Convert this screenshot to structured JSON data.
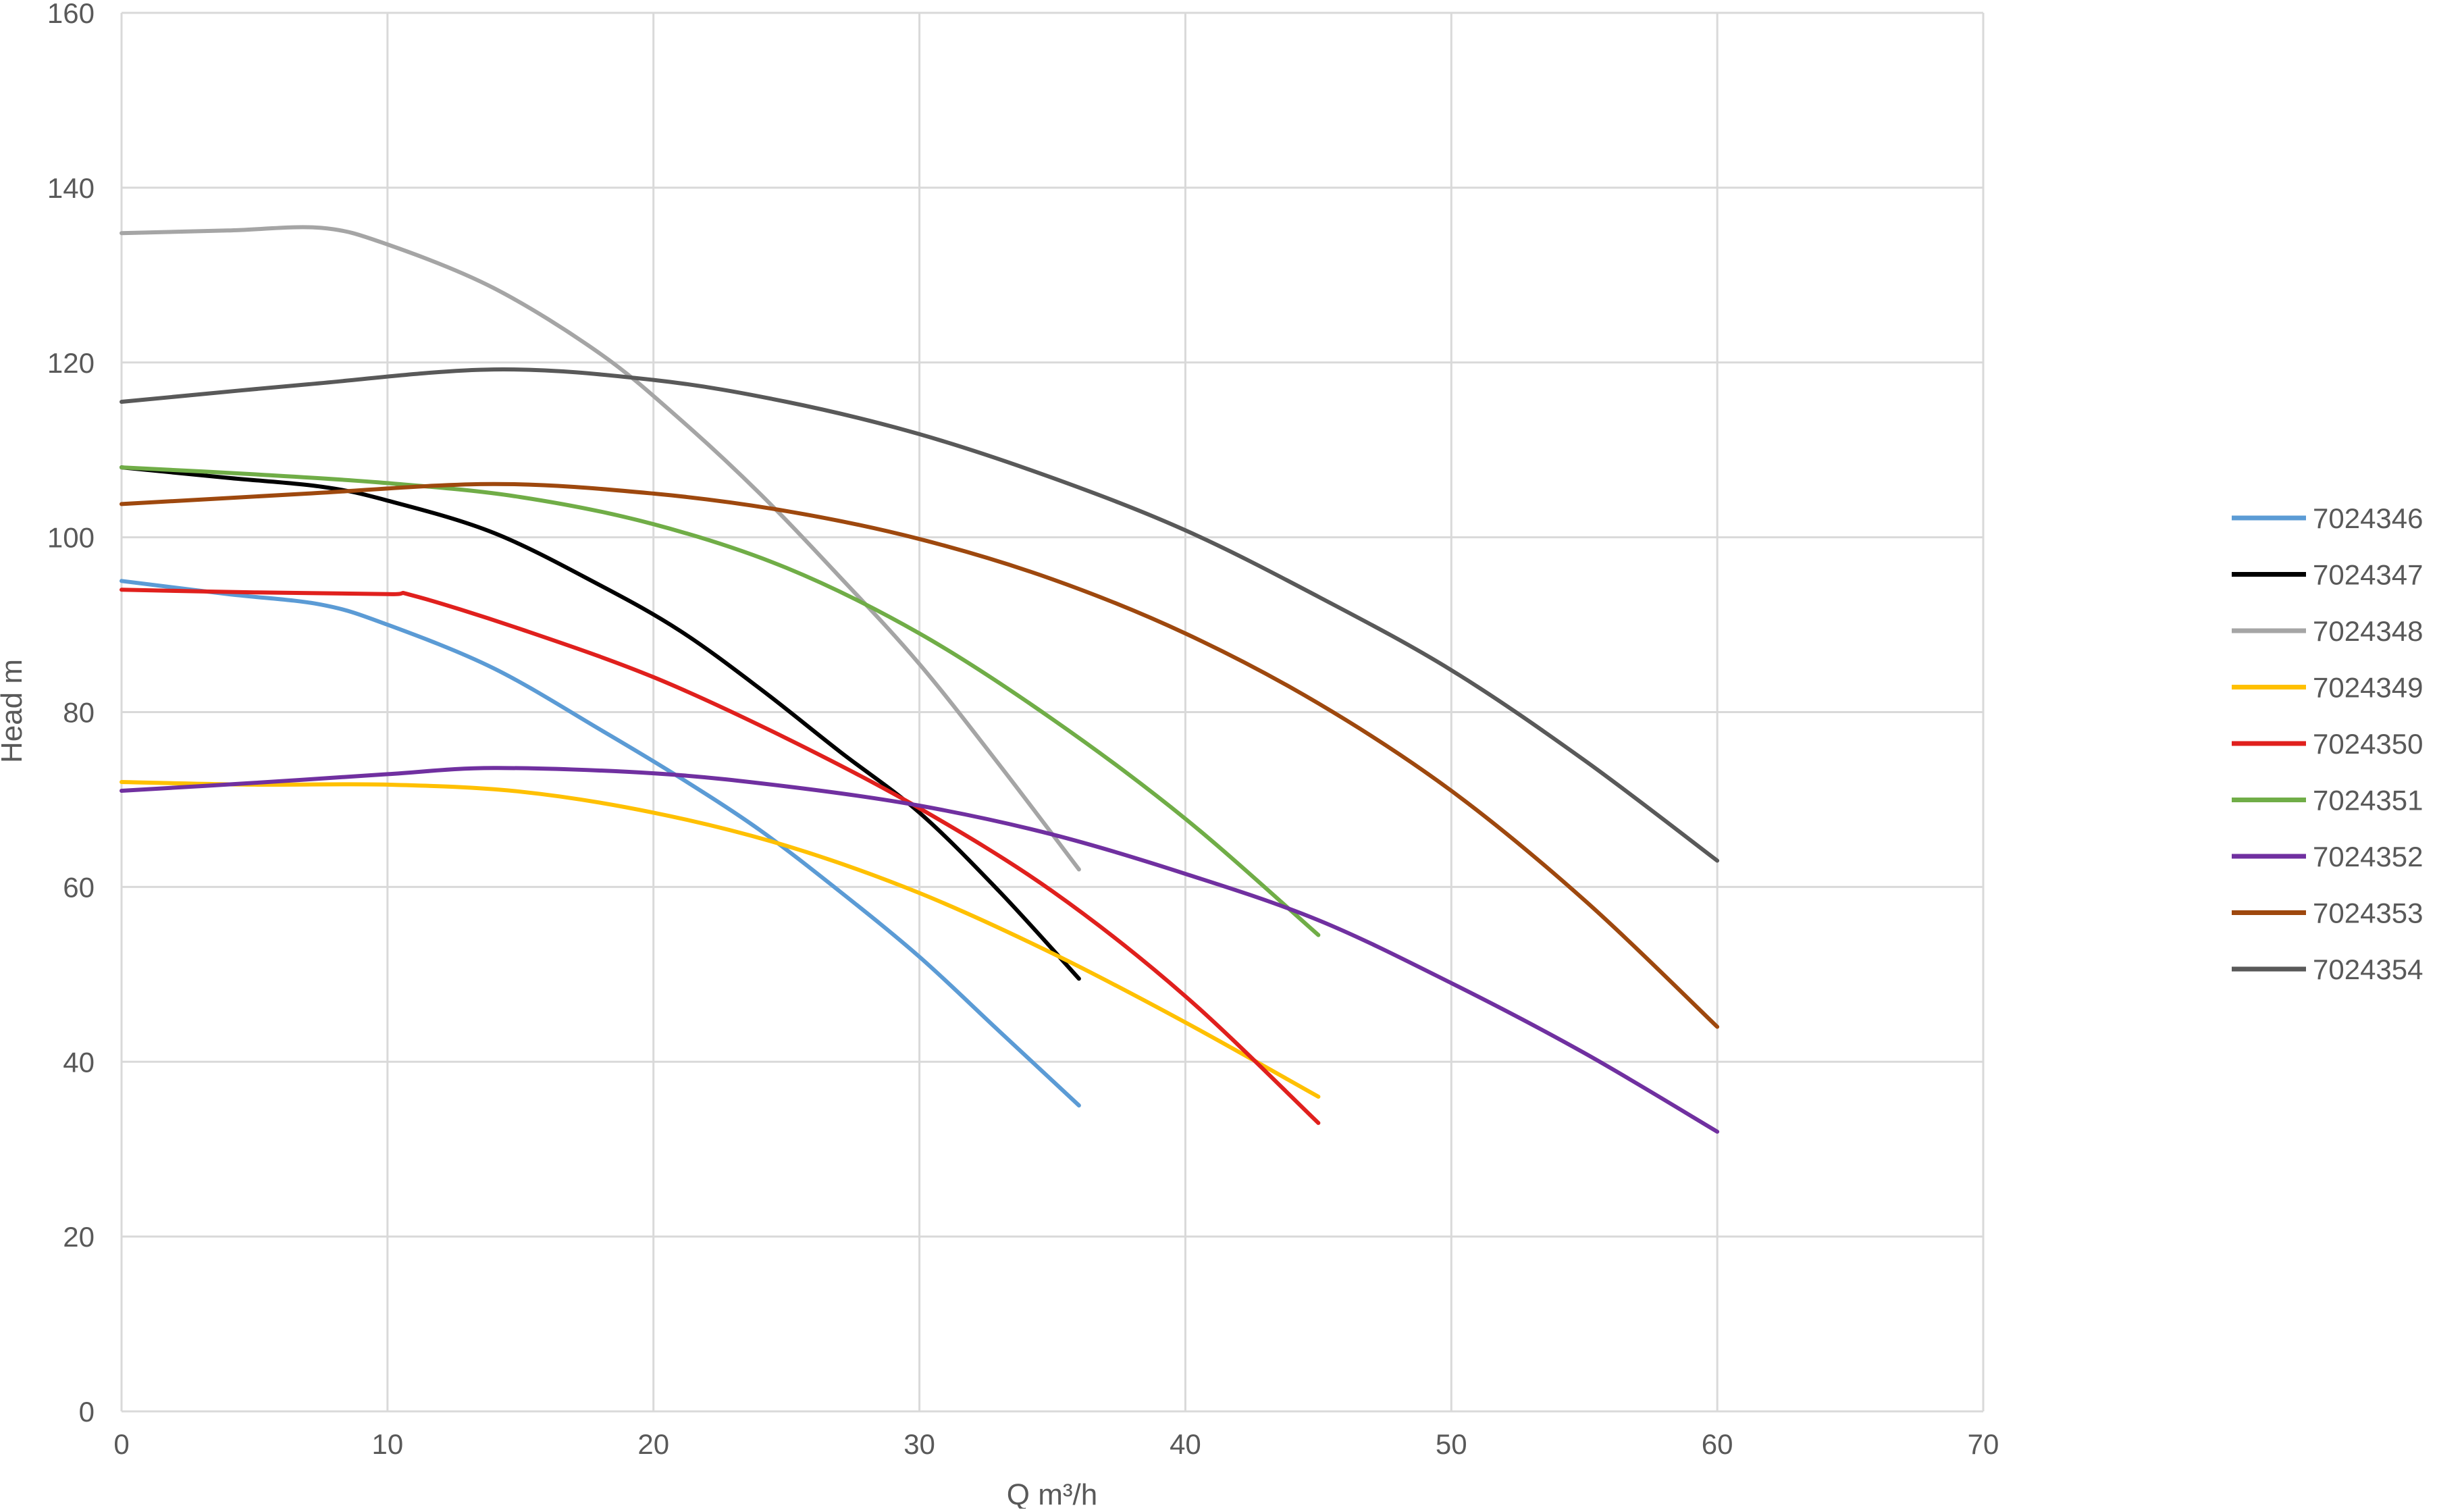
{
  "chart_data": {
    "type": "line",
    "title": "",
    "xlabel": "Q m³/h",
    "ylabel": "Head m",
    "xlim": [
      0,
      70
    ],
    "ylim": [
      0,
      160
    ],
    "x_ticks": [
      0,
      10,
      20,
      30,
      40,
      50,
      60,
      70
    ],
    "y_ticks": [
      0,
      20,
      40,
      60,
      80,
      100,
      120,
      140,
      160
    ],
    "grid": true,
    "legend_position": "right",
    "series": [
      {
        "name": "7024346",
        "color": "#5b9bd5",
        "points": [
          [
            0,
            95
          ],
          [
            4,
            93.5
          ],
          [
            7.5,
            92.3
          ],
          [
            10,
            90
          ],
          [
            14,
            85
          ],
          [
            18,
            78
          ],
          [
            21,
            72.5
          ],
          [
            24,
            66.5
          ],
          [
            27,
            59.5
          ],
          [
            30,
            52
          ],
          [
            33,
            43.5
          ],
          [
            36,
            35
          ]
        ]
      },
      {
        "name": "7024347",
        "color": "#000000",
        "points": [
          [
            0,
            108
          ],
          [
            4,
            106.8
          ],
          [
            7.5,
            105.8
          ],
          [
            10,
            104.2
          ],
          [
            14,
            100.5
          ],
          [
            18,
            94.5
          ],
          [
            21,
            89.3
          ],
          [
            24,
            82.7
          ],
          [
            27,
            75.5
          ],
          [
            30,
            68.5
          ],
          [
            33,
            59.5
          ],
          [
            36,
            49.5
          ]
        ]
      },
      {
        "name": "7024348",
        "color": "#a5a5a5",
        "points": [
          [
            0,
            134.8
          ],
          [
            4,
            135.1
          ],
          [
            7.5,
            135.4
          ],
          [
            10,
            133.5
          ],
          [
            14,
            128.5
          ],
          [
            18,
            121
          ],
          [
            21,
            113.5
          ],
          [
            24,
            105
          ],
          [
            27,
            95.5
          ],
          [
            30,
            85.5
          ],
          [
            33,
            74
          ],
          [
            36,
            62
          ]
        ]
      },
      {
        "name": "7024349",
        "color": "#ffc000",
        "points": [
          [
            0,
            72
          ],
          [
            5,
            71.7
          ],
          [
            10,
            71.7
          ],
          [
            15,
            70.9
          ],
          [
            20,
            68.5
          ],
          [
            25,
            64.7
          ],
          [
            30,
            59.3
          ],
          [
            35,
            52.4
          ],
          [
            40,
            44.5
          ],
          [
            45,
            36
          ]
        ]
      },
      {
        "name": "7024350",
        "color": "#e0201d",
        "points": [
          [
            0,
            94
          ],
          [
            5,
            93.7
          ],
          [
            10,
            93.5
          ],
          [
            11,
            93.3
          ],
          [
            15,
            89.5
          ],
          [
            20,
            84
          ],
          [
            25,
            77
          ],
          [
            30,
            69
          ],
          [
            35,
            59.5
          ],
          [
            40,
            47.5
          ],
          [
            45,
            33
          ]
        ]
      },
      {
        "name": "7024351",
        "color": "#70ad47",
        "points": [
          [
            0,
            108
          ],
          [
            5,
            107.2
          ],
          [
            10,
            106.2
          ],
          [
            15,
            104.6
          ],
          [
            20,
            101.5
          ],
          [
            25,
            96.5
          ],
          [
            30,
            89
          ],
          [
            35,
            79.2
          ],
          [
            40,
            67.8
          ],
          [
            45,
            54.5
          ]
        ]
      },
      {
        "name": "7024352",
        "color": "#7030a0",
        "points": [
          [
            0,
            71
          ],
          [
            5,
            71.9
          ],
          [
            10,
            72.9
          ],
          [
            14,
            73.6
          ],
          [
            20,
            73
          ],
          [
            25,
            71.5
          ],
          [
            30,
            69.3
          ],
          [
            35,
            66
          ],
          [
            40,
            61.5
          ],
          [
            45,
            56.2
          ],
          [
            50,
            49
          ],
          [
            55,
            41
          ],
          [
            60,
            32
          ]
        ]
      },
      {
        "name": "7024353",
        "color": "#9e480e",
        "points": [
          [
            0,
            103.8
          ],
          [
            7,
            105
          ],
          [
            14,
            106.1
          ],
          [
            20,
            105
          ],
          [
            25,
            103
          ],
          [
            30,
            99.8
          ],
          [
            35,
            95.2
          ],
          [
            40,
            89
          ],
          [
            45,
            81
          ],
          [
            50,
            71
          ],
          [
            55,
            58.5
          ],
          [
            60,
            44
          ]
        ]
      },
      {
        "name": "7024354",
        "color": "#595959",
        "points": [
          [
            0,
            115.5
          ],
          [
            7,
            117.5
          ],
          [
            14,
            119.2
          ],
          [
            20,
            118
          ],
          [
            25,
            115.5
          ],
          [
            30,
            111.8
          ],
          [
            35,
            106.8
          ],
          [
            40,
            100.8
          ],
          [
            45,
            93.2
          ],
          [
            50,
            84.8
          ],
          [
            55,
            74.5
          ],
          [
            60,
            63
          ]
        ]
      }
    ]
  }
}
